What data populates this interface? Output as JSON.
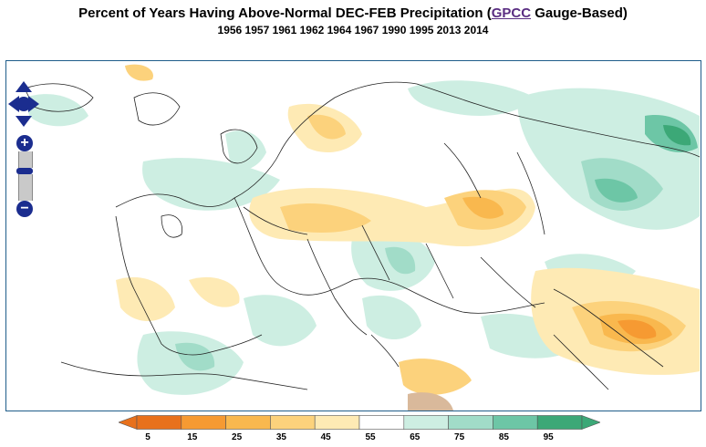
{
  "header": {
    "title_prefix": "Percent of Years Having Above-Normal DEC-FEB Precipitation (",
    "title_link": "GPCC",
    "title_suffix": " Gauge-Based)",
    "years": "1956 1957 1961 1962 1964 1967 1990 1995 2013 2014"
  },
  "map": {
    "region": "Europe and Western Asia",
    "controls": {
      "pan": "pan-arrows-icon",
      "zoom_in": "+",
      "zoom_out": "−"
    }
  },
  "legend": {
    "labels": [
      "5",
      "15",
      "25",
      "35",
      "45",
      "55",
      "65",
      "75",
      "85",
      "95"
    ],
    "colors": [
      "#e8711c",
      "#f69a32",
      "#f9b84e",
      "#fcd27c",
      "#feeab4",
      "#ffffff",
      "#cdeee2",
      "#a1dcc8",
      "#6dc6a6",
      "#3ca877"
    ]
  }
}
